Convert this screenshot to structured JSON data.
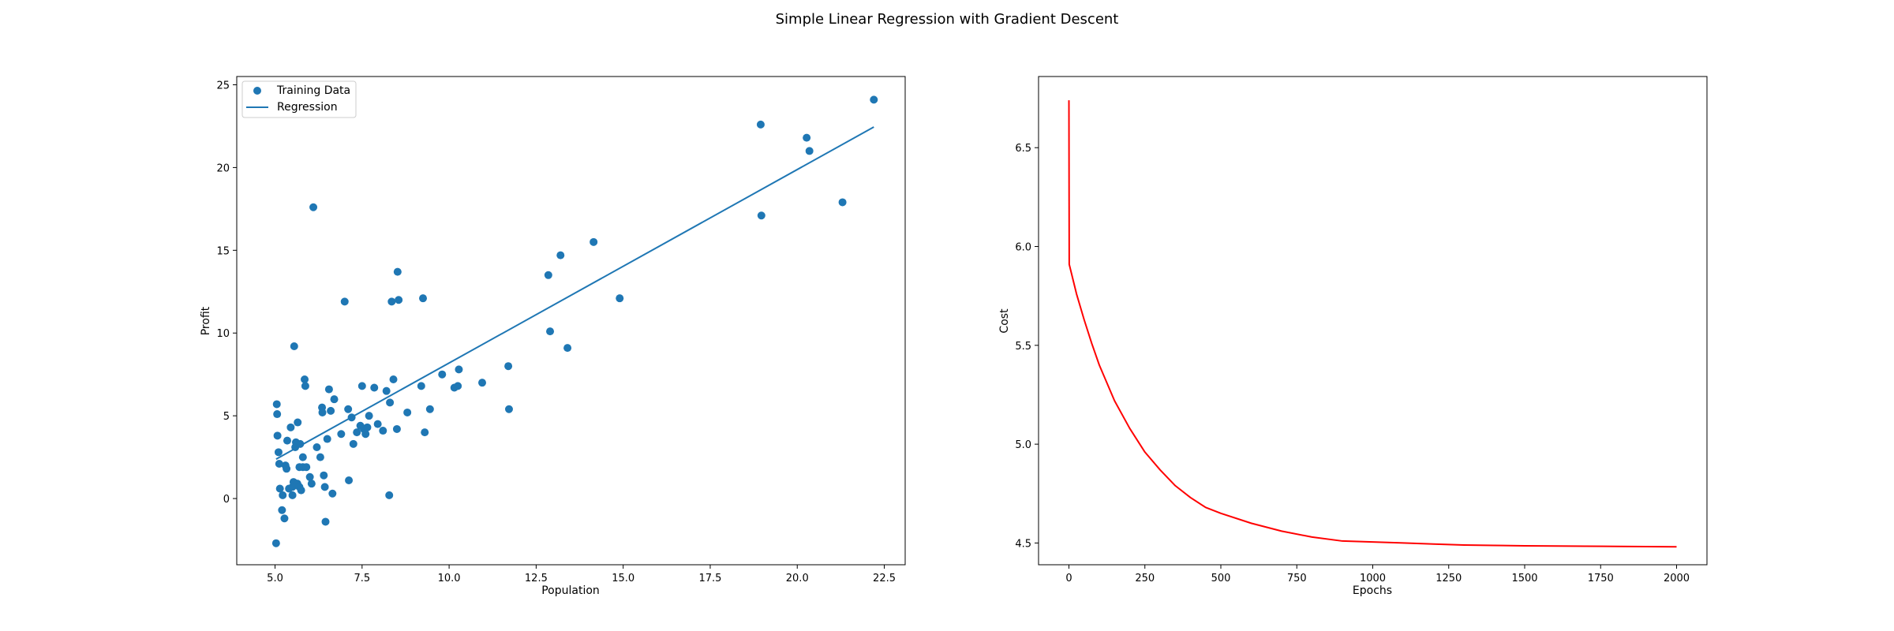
{
  "figure": {
    "title": "Simple Linear Regression with Gradient Descent"
  },
  "chart_data": [
    {
      "type": "scatter",
      "xlabel": "Population",
      "ylabel": "Profit",
      "xlim": [
        3.9,
        23.1
      ],
      "ylim": [
        -4.0,
        25.5
      ],
      "xticks": [
        5.0,
        7.5,
        10.0,
        12.5,
        15.0,
        17.5,
        20.0,
        22.5
      ],
      "xtick_labels": [
        "5.0",
        "7.5",
        "10.0",
        "12.5",
        "15.0",
        "17.5",
        "20.0",
        "22.5"
      ],
      "yticks": [
        0,
        5,
        10,
        15,
        20,
        25
      ],
      "ytick_labels": [
        "0",
        "5",
        "10",
        "15",
        "20",
        "25"
      ],
      "grid": false,
      "legend_position": "top-left",
      "series": [
        {
          "name": "Training Data",
          "kind": "scatter",
          "color": "#1f77b4",
          "points": [
            [
              5.03,
              -2.7
            ],
            [
              5.05,
              5.7
            ],
            [
              5.06,
              5.1
            ],
            [
              5.07,
              3.8
            ],
            [
              5.1,
              2.8
            ],
            [
              5.12,
              2.1
            ],
            [
              5.14,
              0.6
            ],
            [
              5.2,
              -0.7
            ],
            [
              5.22,
              0.2
            ],
            [
              5.27,
              -1.2
            ],
            [
              5.3,
              2.0
            ],
            [
              5.33,
              1.8
            ],
            [
              5.35,
              3.5
            ],
            [
              5.4,
              0.6
            ],
            [
              5.45,
              4.3
            ],
            [
              5.5,
              0.7
            ],
            [
              5.5,
              0.2
            ],
            [
              5.53,
              1.0
            ],
            [
              5.55,
              9.2
            ],
            [
              5.58,
              3.1
            ],
            [
              5.6,
              3.4
            ],
            [
              5.64,
              0.9
            ],
            [
              5.65,
              4.6
            ],
            [
              5.7,
              1.9
            ],
            [
              5.7,
              0.7
            ],
            [
              5.72,
              3.3
            ],
            [
              5.75,
              0.5
            ],
            [
              5.8,
              2.5
            ],
            [
              5.8,
              1.9
            ],
            [
              5.85,
              7.2
            ],
            [
              5.87,
              6.8
            ],
            [
              5.9,
              1.9
            ],
            [
              6.0,
              1.3
            ],
            [
              6.05,
              0.9
            ],
            [
              6.1,
              17.6
            ],
            [
              6.2,
              3.1
            ],
            [
              6.3,
              2.5
            ],
            [
              6.35,
              5.5
            ],
            [
              6.36,
              5.2
            ],
            [
              6.4,
              1.4
            ],
            [
              6.43,
              0.7
            ],
            [
              6.45,
              -1.4
            ],
            [
              6.5,
              3.6
            ],
            [
              6.55,
              6.6
            ],
            [
              6.6,
              5.3
            ],
            [
              6.65,
              0.3
            ],
            [
              6.7,
              6.0
            ],
            [
              6.9,
              3.9
            ],
            [
              7.0,
              11.9
            ],
            [
              7.1,
              5.4
            ],
            [
              7.12,
              1.1
            ],
            [
              7.2,
              4.9
            ],
            [
              7.25,
              3.3
            ],
            [
              7.35,
              4.0
            ],
            [
              7.45,
              4.4
            ],
            [
              7.5,
              6.8
            ],
            [
              7.55,
              4.2
            ],
            [
              7.6,
              3.9
            ],
            [
              7.65,
              4.3
            ],
            [
              7.7,
              5.0
            ],
            [
              7.85,
              6.7
            ],
            [
              7.95,
              4.5
            ],
            [
              8.1,
              4.1
            ],
            [
              8.2,
              6.5
            ],
            [
              8.28,
              0.2
            ],
            [
              8.3,
              5.8
            ],
            [
              8.35,
              11.9
            ],
            [
              8.4,
              7.2
            ],
            [
              8.5,
              4.2
            ],
            [
              8.52,
              13.7
            ],
            [
              8.55,
              12.0
            ],
            [
              8.8,
              5.2
            ],
            [
              9.2,
              6.8
            ],
            [
              9.25,
              12.1
            ],
            [
              9.3,
              4.0
            ],
            [
              9.45,
              5.4
            ],
            [
              9.8,
              7.5
            ],
            [
              10.15,
              6.7
            ],
            [
              10.25,
              6.8
            ],
            [
              10.28,
              7.8
            ],
            [
              10.95,
              7.0
            ],
            [
              11.7,
              8.0
            ],
            [
              11.72,
              5.4
            ],
            [
              12.85,
              13.5
            ],
            [
              12.9,
              10.1
            ],
            [
              13.2,
              14.7
            ],
            [
              13.4,
              9.1
            ],
            [
              14.15,
              15.5
            ],
            [
              14.9,
              12.1
            ],
            [
              18.95,
              22.6
            ],
            [
              18.97,
              17.1
            ],
            [
              20.27,
              21.8
            ],
            [
              20.35,
              21.0
            ],
            [
              21.3,
              17.9
            ],
            [
              22.2,
              24.1
            ]
          ]
        },
        {
          "name": "Regression",
          "kind": "line",
          "color": "#1f77b4",
          "points": [
            [
              5.03,
              2.38
            ],
            [
              22.2,
              22.45
            ]
          ]
        }
      ]
    },
    {
      "type": "line",
      "xlabel": "Epochs",
      "ylabel": "Cost",
      "xlim": [
        -100,
        2100
      ],
      "ylim": [
        4.39,
        6.86
      ],
      "xticks": [
        0,
        250,
        500,
        750,
        1000,
        1250,
        1500,
        1750,
        2000
      ],
      "xtick_labels": [
        "0",
        "250",
        "500",
        "750",
        "1000",
        "1250",
        "1500",
        "1750",
        "2000"
      ],
      "yticks": [
        4.5,
        5.0,
        5.5,
        6.0,
        6.5
      ],
      "ytick_labels": [
        "4.5",
        "5.0",
        "5.5",
        "6.0",
        "6.5"
      ],
      "grid": false,
      "series": [
        {
          "kind": "line",
          "color": "#ff0000",
          "points": [
            [
              0,
              6.74
            ],
            [
              1,
              5.91
            ],
            [
              25,
              5.76
            ],
            [
              50,
              5.63
            ],
            [
              75,
              5.51
            ],
            [
              100,
              5.4
            ],
            [
              150,
              5.22
            ],
            [
              200,
              5.08
            ],
            [
              250,
              4.96
            ],
            [
              300,
              4.87
            ],
            [
              350,
              4.79
            ],
            [
              400,
              4.73
            ],
            [
              450,
              4.68
            ],
            [
              500,
              4.65
            ],
            [
              600,
              4.6
            ],
            [
              700,
              4.56
            ],
            [
              800,
              4.53
            ],
            [
              900,
              4.51
            ],
            [
              1000,
              4.505
            ],
            [
              1100,
              4.5
            ],
            [
              1200,
              4.495
            ],
            [
              1300,
              4.49
            ],
            [
              1400,
              4.488
            ],
            [
              1500,
              4.486
            ],
            [
              1600,
              4.485
            ],
            [
              1700,
              4.484
            ],
            [
              1800,
              4.483
            ],
            [
              1900,
              4.482
            ],
            [
              2000,
              4.481
            ]
          ]
        }
      ]
    }
  ]
}
